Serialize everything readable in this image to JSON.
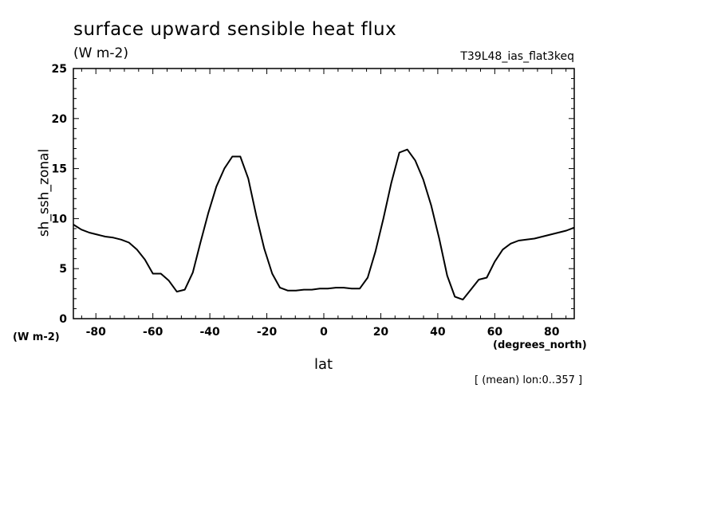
{
  "chart_data": {
    "type": "line",
    "title": "surface upward sensible heat flux",
    "units": "(W m-2)",
    "run_id": "T39L48_ias_flat3keq",
    "ylabel": "sh_ssh_zonal",
    "yunits": "(W m-2)",
    "xlabel": "lat",
    "xunits": "(degrees_north)",
    "note": "[ (mean) lon:0..357 ]",
    "xlim": [
      -87.9,
      87.9
    ],
    "ylim": [
      0,
      25
    ],
    "x_ticks": [
      -80,
      -60,
      -40,
      -20,
      0,
      20,
      40,
      60,
      80
    ],
    "x_tick_labels": [
      "-80",
      "-60",
      "-40",
      "-20",
      "0",
      "20",
      "40",
      "60",
      "80"
    ],
    "y_ticks": [
      0,
      5,
      10,
      15,
      20,
      25
    ],
    "y_tick_labels": [
      "0",
      "5",
      "10",
      "15",
      "20",
      "25"
    ],
    "grid": false,
    "series": [
      {
        "x": [
          -87.9,
          -85.1,
          -82.3,
          -79.5,
          -76.7,
          -73.9,
          -71.1,
          -68.4,
          -65.6,
          -62.8,
          -60.0,
          -57.2,
          -54.4,
          -51.6,
          -48.8,
          -46.0,
          -43.3,
          -40.5,
          -37.7,
          -34.9,
          -32.1,
          -29.3,
          -26.5,
          -23.7,
          -20.9,
          -18.1,
          -15.4,
          -12.6,
          -9.8,
          -7.0,
          -4.2,
          -1.4,
          1.4,
          4.2,
          7.0,
          9.8,
          12.6,
          15.4,
          18.1,
          20.9,
          23.7,
          26.5,
          29.3,
          32.1,
          34.9,
          37.7,
          40.5,
          43.3,
          46.0,
          48.8,
          51.6,
          54.4,
          57.2,
          60.0,
          62.8,
          65.6,
          68.4,
          71.1,
          73.9,
          76.7,
          79.5,
          82.3,
          85.1,
          87.9
        ],
        "y": [
          9.4,
          8.9,
          8.6,
          8.4,
          8.2,
          8.1,
          7.9,
          7.6,
          6.9,
          5.9,
          4.5,
          4.5,
          3.8,
          2.7,
          2.9,
          4.6,
          7.6,
          10.6,
          13.2,
          15.0,
          16.2,
          16.2,
          14.0,
          10.3,
          7.0,
          4.5,
          3.1,
          2.8,
          2.8,
          2.9,
          2.9,
          3.0,
          3.0,
          3.1,
          3.1,
          3.0,
          3.0,
          4.1,
          6.7,
          10.0,
          13.6,
          16.6,
          16.9,
          15.8,
          13.9,
          11.3,
          8.0,
          4.3,
          2.2,
          1.9,
          2.9,
          3.9,
          4.1,
          5.7,
          6.9,
          7.5,
          7.8,
          7.9,
          8.0,
          8.2,
          8.4,
          8.6,
          8.8,
          9.1
        ]
      }
    ]
  }
}
